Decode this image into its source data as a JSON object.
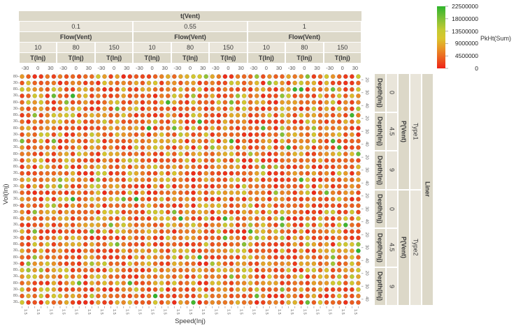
{
  "chart_data": {
    "type": "scatter",
    "description": "Trellis (small multiples) grid of dots colored by PkHt(Sum); nested column facets t(Vent)>Flow(Vent)>T(Inj)>Speed(Inj) and nested row facets Liner>P(Vent)>Depth(Inj)>Vol(Inj)",
    "axes": {
      "x_title": "Speed(Inj)",
      "y_title": "Vol(Inj)"
    },
    "column_facets": {
      "t_vent": {
        "label": "t(Vent)",
        "values": [
          "0.1",
          "0.55",
          "1"
        ]
      },
      "flow_vent": {
        "label": "Flow(Vent)",
        "values": [
          "10",
          "80",
          "150"
        ]
      },
      "t_inj": {
        "label": "T(Inj)",
        "ticks": [
          "-30",
          "0",
          "30"
        ]
      },
      "speed_inj": {
        "label": "Speed(Inj)",
        "tick_label": "1.5",
        "points_per_tick": 2
      }
    },
    "row_facets": {
      "liner": {
        "label": "Liner",
        "values": [
          "Type1",
          "Type2"
        ]
      },
      "p_vent": {
        "label": "P(Vent)",
        "values": [
          "0",
          "4.5",
          "9"
        ]
      },
      "depth_inj": {
        "label": "Depth(Inj)",
        "ticks": [
          "20",
          "30",
          "40"
        ]
      },
      "vol_inj": {
        "label": "Vol(Inj)",
        "ticks": [
          "80",
          "30"
        ]
      }
    },
    "legend": {
      "title": "PkHt(Sum)",
      "tick_labels": [
        "22500000",
        "18000000",
        "13500000",
        "9000000",
        "4500000",
        "0"
      ],
      "min": 0,
      "max": 22500000,
      "gradient_stops": [
        [
          0.0,
          "#ee2318"
        ],
        [
          0.18,
          "#ec6420"
        ],
        [
          0.34,
          "#e89a27"
        ],
        [
          0.48,
          "#d9c52d"
        ],
        [
          0.62,
          "#c3ca31"
        ],
        [
          0.8,
          "#7fc035"
        ],
        [
          1.0,
          "#2fb42c"
        ]
      ]
    },
    "dots": {
      "seed": 20240501,
      "radius": 3.1,
      "distribution": "skewed-low"
    },
    "colors": {
      "facet_label_fill": "#dcd8c8",
      "facet_value_fill": "#e9e5da",
      "grid_minor": "#f1eee9",
      "grid_major": "#e3dfd8",
      "tick_color": "#9a9a9a",
      "dot_stroke": "rgba(0,0,0,0.16)"
    }
  }
}
